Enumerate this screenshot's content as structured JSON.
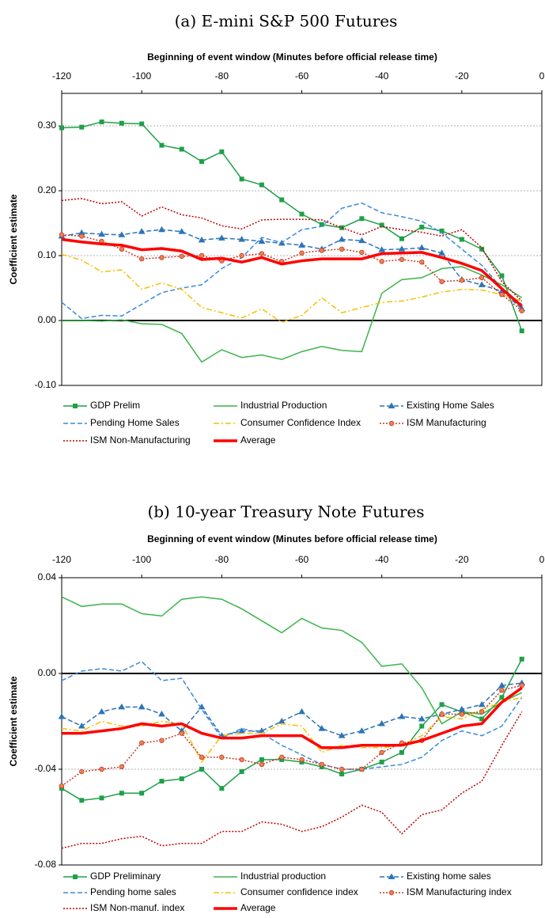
{
  "chart_data": [
    {
      "type": "line",
      "title": "(a) E-mini S&P 500 Futures",
      "x_label": "Beginning of event window (Minutes before official release time)",
      "y_label": "Coefficient estimate",
      "x": [
        -120,
        -115,
        -110,
        -105,
        -100,
        -95,
        -90,
        -85,
        -80,
        -75,
        -70,
        -65,
        -60,
        -55,
        -50,
        -45,
        -40,
        -35,
        -30,
        -25,
        -20,
        -15,
        -10,
        -5
      ],
      "xlim": [
        -120,
        0
      ],
      "xticks": [
        -120,
        -100,
        -80,
        -60,
        -40,
        -20,
        0
      ],
      "ylim": [
        -0.1,
        0.35
      ],
      "yticks": [
        {
          "value": -0.1,
          "label": "-0.10"
        },
        {
          "value": 0,
          "label": "0.00"
        },
        {
          "value": 0.1,
          "label": "0.10"
        },
        {
          "value": 0.2,
          "label": "0.20"
        },
        {
          "value": 0.3,
          "label": "0.30"
        }
      ],
      "grid": true,
      "series": [
        {
          "name": "GDP Prelim",
          "color": "#1fa048",
          "line_style": "solid",
          "marker": "square",
          "values": [
            0.297,
            0.298,
            0.306,
            0.304,
            0.303,
            0.27,
            0.264,
            0.245,
            0.26,
            0.218,
            0.209,
            0.186,
            0.164,
            0.148,
            0.143,
            0.157,
            0.147,
            0.126,
            0.144,
            0.138,
            0.125,
            0.11,
            0.069,
            -0.016
          ]
        },
        {
          "name": "Industrial Production",
          "color": "#3cb44b",
          "line_style": "solid",
          "marker": null,
          "values": [
            0.0,
            0.0,
            -0.001,
            0.001,
            -0.005,
            -0.006,
            -0.02,
            -0.064,
            -0.045,
            -0.057,
            -0.053,
            -0.06,
            -0.048,
            -0.04,
            -0.046,
            -0.048,
            0.042,
            0.063,
            0.066,
            0.08,
            0.083,
            0.07,
            0.055,
            0.035
          ]
        },
        {
          "name": "Existing Home Sales",
          "color": "#2e75b6",
          "line_style": "dashed",
          "marker": "triangle",
          "values": [
            0.13,
            0.135,
            0.133,
            0.132,
            0.137,
            0.14,
            0.137,
            0.124,
            0.127,
            0.125,
            0.122,
            0.119,
            0.116,
            0.11,
            0.125,
            0.123,
            0.109,
            0.11,
            0.112,
            0.104,
            0.063,
            0.055,
            0.045,
            0.018
          ]
        },
        {
          "name": "Pending Home Sales",
          "color": "#3b8ad9",
          "line_style": "dashed",
          "marker": null,
          "values": [
            0.028,
            0.003,
            0.008,
            0.007,
            0.025,
            0.043,
            0.05,
            0.055,
            0.08,
            0.097,
            0.128,
            0.12,
            0.14,
            0.145,
            0.173,
            0.181,
            0.166,
            0.16,
            0.153,
            0.135,
            0.11,
            0.085,
            0.05,
            0.025
          ]
        },
        {
          "name": "Consumer Confidence Index",
          "color": "#f5c000",
          "line_style": "dashdot",
          "marker": null,
          "values": [
            0.102,
            0.093,
            0.075,
            0.078,
            0.048,
            0.058,
            0.048,
            0.02,
            0.012,
            0.004,
            0.018,
            -0.003,
            0.008,
            0.035,
            0.012,
            0.02,
            0.028,
            0.03,
            0.036,
            0.044,
            0.048,
            0.047,
            0.04,
            0.03
          ]
        },
        {
          "name": "ISM Manufacturing",
          "color": "#c0392b",
          "line_style": "dotted",
          "marker": "circle",
          "values": [
            0.132,
            0.13,
            0.122,
            0.11,
            0.095,
            0.097,
            0.099,
            0.1,
            0.092,
            0.1,
            0.103,
            0.091,
            0.104,
            0.108,
            0.11,
            0.105,
            0.091,
            0.094,
            0.09,
            0.06,
            0.062,
            0.066,
            0.04,
            0.015
          ]
        },
        {
          "name": "ISM Non-Manufacturing",
          "color": "#c00000",
          "line_style": "dotted",
          "marker": null,
          "values": [
            0.185,
            0.188,
            0.18,
            0.183,
            0.161,
            0.175,
            0.163,
            0.158,
            0.146,
            0.141,
            0.155,
            0.156,
            0.156,
            0.155,
            0.143,
            0.132,
            0.145,
            0.14,
            0.136,
            0.13,
            0.14,
            0.112,
            0.06,
            0.03
          ]
        },
        {
          "name": "Average",
          "color": "#ff0000",
          "line_style": "bold",
          "marker": null,
          "values": [
            0.125,
            0.121,
            0.118,
            0.116,
            0.109,
            0.111,
            0.107,
            0.094,
            0.096,
            0.09,
            0.097,
            0.087,
            0.092,
            0.095,
            0.095,
            0.095,
            0.103,
            0.104,
            0.105,
            0.097,
            0.088,
            0.077,
            0.049,
            0.022
          ]
        }
      ]
    },
    {
      "type": "line",
      "title": "(b) 10-year Treasury Note Futures",
      "x_label": "Beginning of event window (Minutes before official release time)",
      "y_label": "Coefficient estimate",
      "x": [
        -120,
        -115,
        -110,
        -105,
        -100,
        -95,
        -90,
        -85,
        -80,
        -75,
        -70,
        -65,
        -60,
        -55,
        -50,
        -45,
        -40,
        -35,
        -30,
        -25,
        -20,
        -15,
        -10,
        -5
      ],
      "xlim": [
        -120,
        0
      ],
      "xticks": [
        -120,
        -100,
        -80,
        -60,
        -40,
        -20,
        0
      ],
      "ylim": [
        -0.08,
        0.04
      ],
      "yticks": [
        -0.08,
        {
          "value": -0.04,
          "label": "-0.04"
        },
        {
          "value": 0,
          "label": "0.00"
        },
        0.04
      ],
      "grid": true,
      "series": [
        {
          "name": "GDP Preliminary",
          "color": "#1fa048",
          "line_style": "solid",
          "marker": "square",
          "values": [
            -0.048,
            -0.053,
            -0.052,
            -0.05,
            -0.05,
            -0.045,
            -0.044,
            -0.04,
            -0.048,
            -0.041,
            -0.036,
            -0.036,
            -0.037,
            -0.039,
            -0.042,
            -0.04,
            -0.037,
            -0.033,
            -0.022,
            -0.013,
            -0.016,
            -0.019,
            -0.01,
            0.006
          ]
        },
        {
          "name": "Industrial production",
          "color": "#3cb44b",
          "line_style": "solid",
          "marker": null,
          "values": [
            0.032,
            0.028,
            0.029,
            0.029,
            0.025,
            0.024,
            0.031,
            0.032,
            0.031,
            0.027,
            0.022,
            0.017,
            0.023,
            0.019,
            0.018,
            0.013,
            0.003,
            0.004,
            -0.006,
            -0.021,
            -0.016,
            -0.017,
            -0.012,
            -0.008
          ]
        },
        {
          "name": "Existing home sales",
          "color": "#2e75b6",
          "line_style": "dashed",
          "marker": "triangle",
          "values": [
            -0.018,
            -0.022,
            -0.016,
            -0.014,
            -0.014,
            -0.017,
            -0.024,
            -0.014,
            -0.026,
            -0.024,
            -0.024,
            -0.02,
            -0.016,
            -0.023,
            -0.026,
            -0.024,
            -0.021,
            -0.018,
            -0.019,
            -0.017,
            -0.015,
            -0.013,
            -0.005,
            -0.004
          ]
        },
        {
          "name": "Pending home sales",
          "color": "#3b8ad9",
          "line_style": "dashed",
          "marker": null,
          "values": [
            -0.003,
            0.001,
            0.002,
            0.001,
            0.005,
            -0.003,
            -0.002,
            -0.015,
            -0.027,
            -0.023,
            -0.025,
            -0.03,
            -0.034,
            -0.038,
            -0.04,
            -0.04,
            -0.039,
            -0.038,
            -0.035,
            -0.028,
            -0.024,
            -0.026,
            -0.022,
            -0.01
          ]
        },
        {
          "name": "Consumer confidence index",
          "color": "#f5c000",
          "line_style": "dashdot",
          "marker": null,
          "values": [
            -0.023,
            -0.024,
            -0.02,
            -0.022,
            -0.022,
            -0.02,
            -0.021,
            -0.037,
            -0.026,
            -0.025,
            -0.025,
            -0.021,
            -0.022,
            -0.033,
            -0.03,
            -0.031,
            -0.031,
            -0.03,
            -0.026,
            -0.018,
            -0.019,
            -0.015,
            -0.012,
            -0.01
          ]
        },
        {
          "name": "ISM Manufacturing index",
          "color": "#c0392b",
          "line_style": "dotted",
          "marker": "circle",
          "values": [
            -0.047,
            -0.041,
            -0.04,
            -0.039,
            -0.029,
            -0.028,
            -0.025,
            -0.035,
            -0.035,
            -0.036,
            -0.038,
            -0.035,
            -0.036,
            -0.038,
            -0.04,
            -0.04,
            -0.033,
            -0.029,
            -0.028,
            -0.017,
            -0.017,
            -0.016,
            -0.007,
            -0.005
          ]
        },
        {
          "name": "ISM Non-manuf. index",
          "color": "#c00000",
          "line_style": "dotted",
          "marker": null,
          "values": [
            -0.073,
            -0.071,
            -0.071,
            -0.069,
            -0.068,
            -0.072,
            -0.071,
            -0.071,
            -0.066,
            -0.066,
            -0.062,
            -0.063,
            -0.066,
            -0.064,
            -0.06,
            -0.055,
            -0.058,
            -0.067,
            -0.059,
            -0.057,
            -0.05,
            -0.045,
            -0.03,
            -0.016
          ]
        },
        {
          "name": "Average",
          "color": "#ff0000",
          "line_style": "bold",
          "marker": null,
          "values": [
            -0.025,
            -0.025,
            -0.024,
            -0.023,
            -0.021,
            -0.022,
            -0.021,
            -0.025,
            -0.027,
            -0.027,
            -0.026,
            -0.026,
            -0.026,
            -0.031,
            -0.031,
            -0.03,
            -0.03,
            -0.03,
            -0.028,
            -0.025,
            -0.022,
            -0.021,
            -0.012,
            -0.006
          ]
        }
      ]
    }
  ]
}
